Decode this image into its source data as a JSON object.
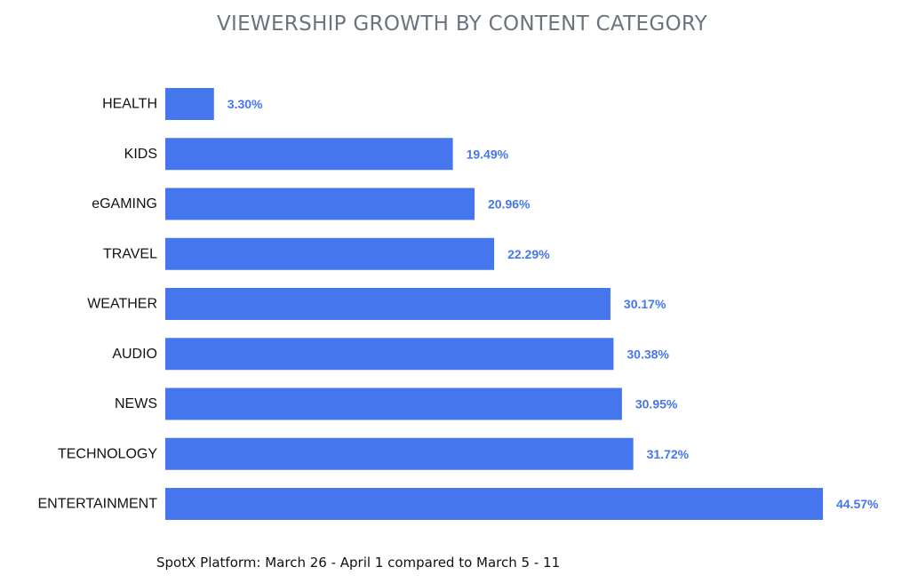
{
  "chart_data": {
    "type": "bar",
    "orientation": "horizontal",
    "title": "VIEWERSHIP GROWTH BY CONTENT CATEGORY",
    "footnote": "SpotX Platform: March 26 - April 1 compared to March 5 - 11",
    "xlabel": "",
    "ylabel": "",
    "categories": [
      "HEALTH",
      "KIDS",
      "eGAMING",
      "TRAVEL",
      "WEATHER",
      "AUDIO",
      "NEWS",
      "TECHNOLOGY",
      "ENTERTAINMENT"
    ],
    "values": [
      3.3,
      19.49,
      20.96,
      22.29,
      30.17,
      30.38,
      30.95,
      31.72,
      44.57
    ],
    "value_labels": [
      "3.30%",
      "19.49%",
      "20.96%",
      "22.29%",
      "30.17%",
      "30.38%",
      "30.95%",
      "31.72%",
      "44.57%"
    ],
    "xlim": [
      0,
      44.57
    ],
    "grid": false,
    "legend": "none",
    "colors": {
      "bar": "#4676ee",
      "value_label": "#4676ee",
      "category_label": "#111111",
      "title": "#6b7280"
    }
  }
}
